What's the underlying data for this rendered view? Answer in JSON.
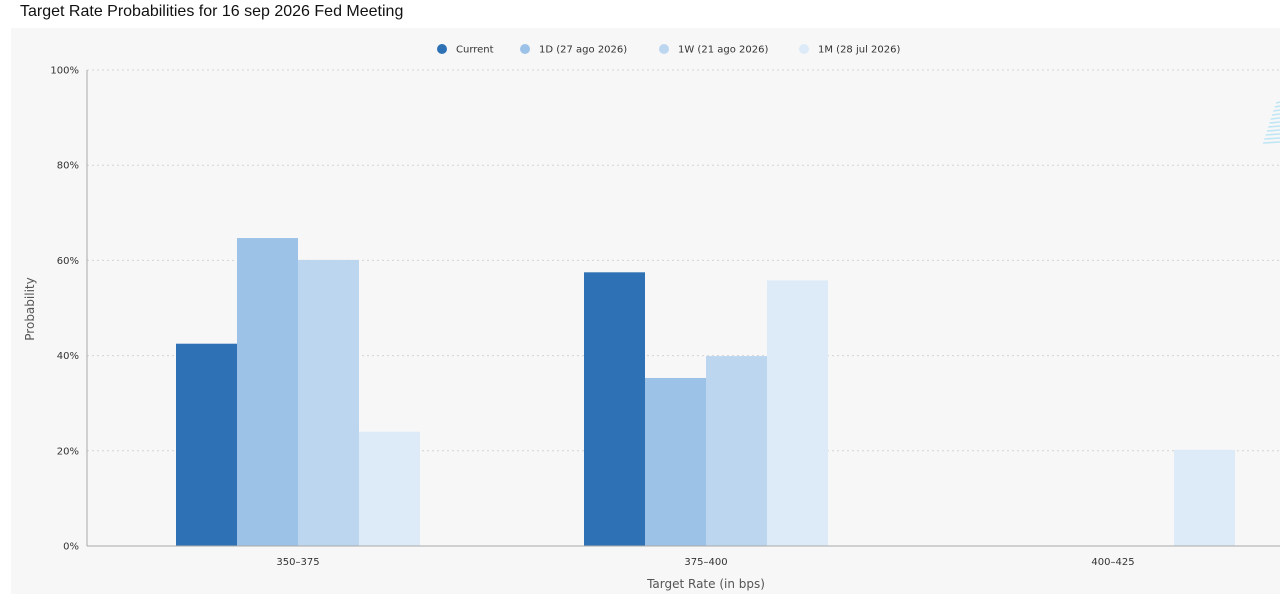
{
  "page": {
    "title": "Target Rate Probabilities for 16 sep 2026 Fed Meeting"
  },
  "colors": {
    "current": "#2e72b5",
    "1d": "#9dc2e7",
    "1w": "#bcd6ef",
    "1m": "#ddeaf7",
    "gridline": "#d4d4d4",
    "axis": "#a9a9a9",
    "watermark": "#bfe6f5"
  },
  "chart_data": {
    "type": "bar",
    "title": "Target Rate Probabilities for 16 sep 2026 Fed Meeting",
    "xlabel": "Target Rate (in bps)",
    "ylabel": "Probability",
    "ylim": [
      0,
      100
    ],
    "yticks": [
      "0%",
      "20%",
      "40%",
      "60%",
      "80%",
      "100%"
    ],
    "ytick_values": [
      0,
      20,
      40,
      60,
      80,
      100
    ],
    "grid": true,
    "legend_position": "top-center",
    "categories": [
      "350-375",
      "375-400",
      "400-425"
    ],
    "series": [
      {
        "name": "Current",
        "color_key": "current",
        "values": [
          42.5,
          57.5,
          0
        ]
      },
      {
        "name": "1D (27 ago 2026)",
        "color_key": "1d",
        "values": [
          64.7,
          35.3,
          0
        ]
      },
      {
        "name": "1W (21 ago 2026)",
        "color_key": "1w",
        "values": [
          60.1,
          39.9,
          0
        ]
      },
      {
        "name": "1M (28 jul 2026)",
        "color_key": "1m",
        "values": [
          24.0,
          55.8,
          20.2
        ]
      }
    ]
  }
}
